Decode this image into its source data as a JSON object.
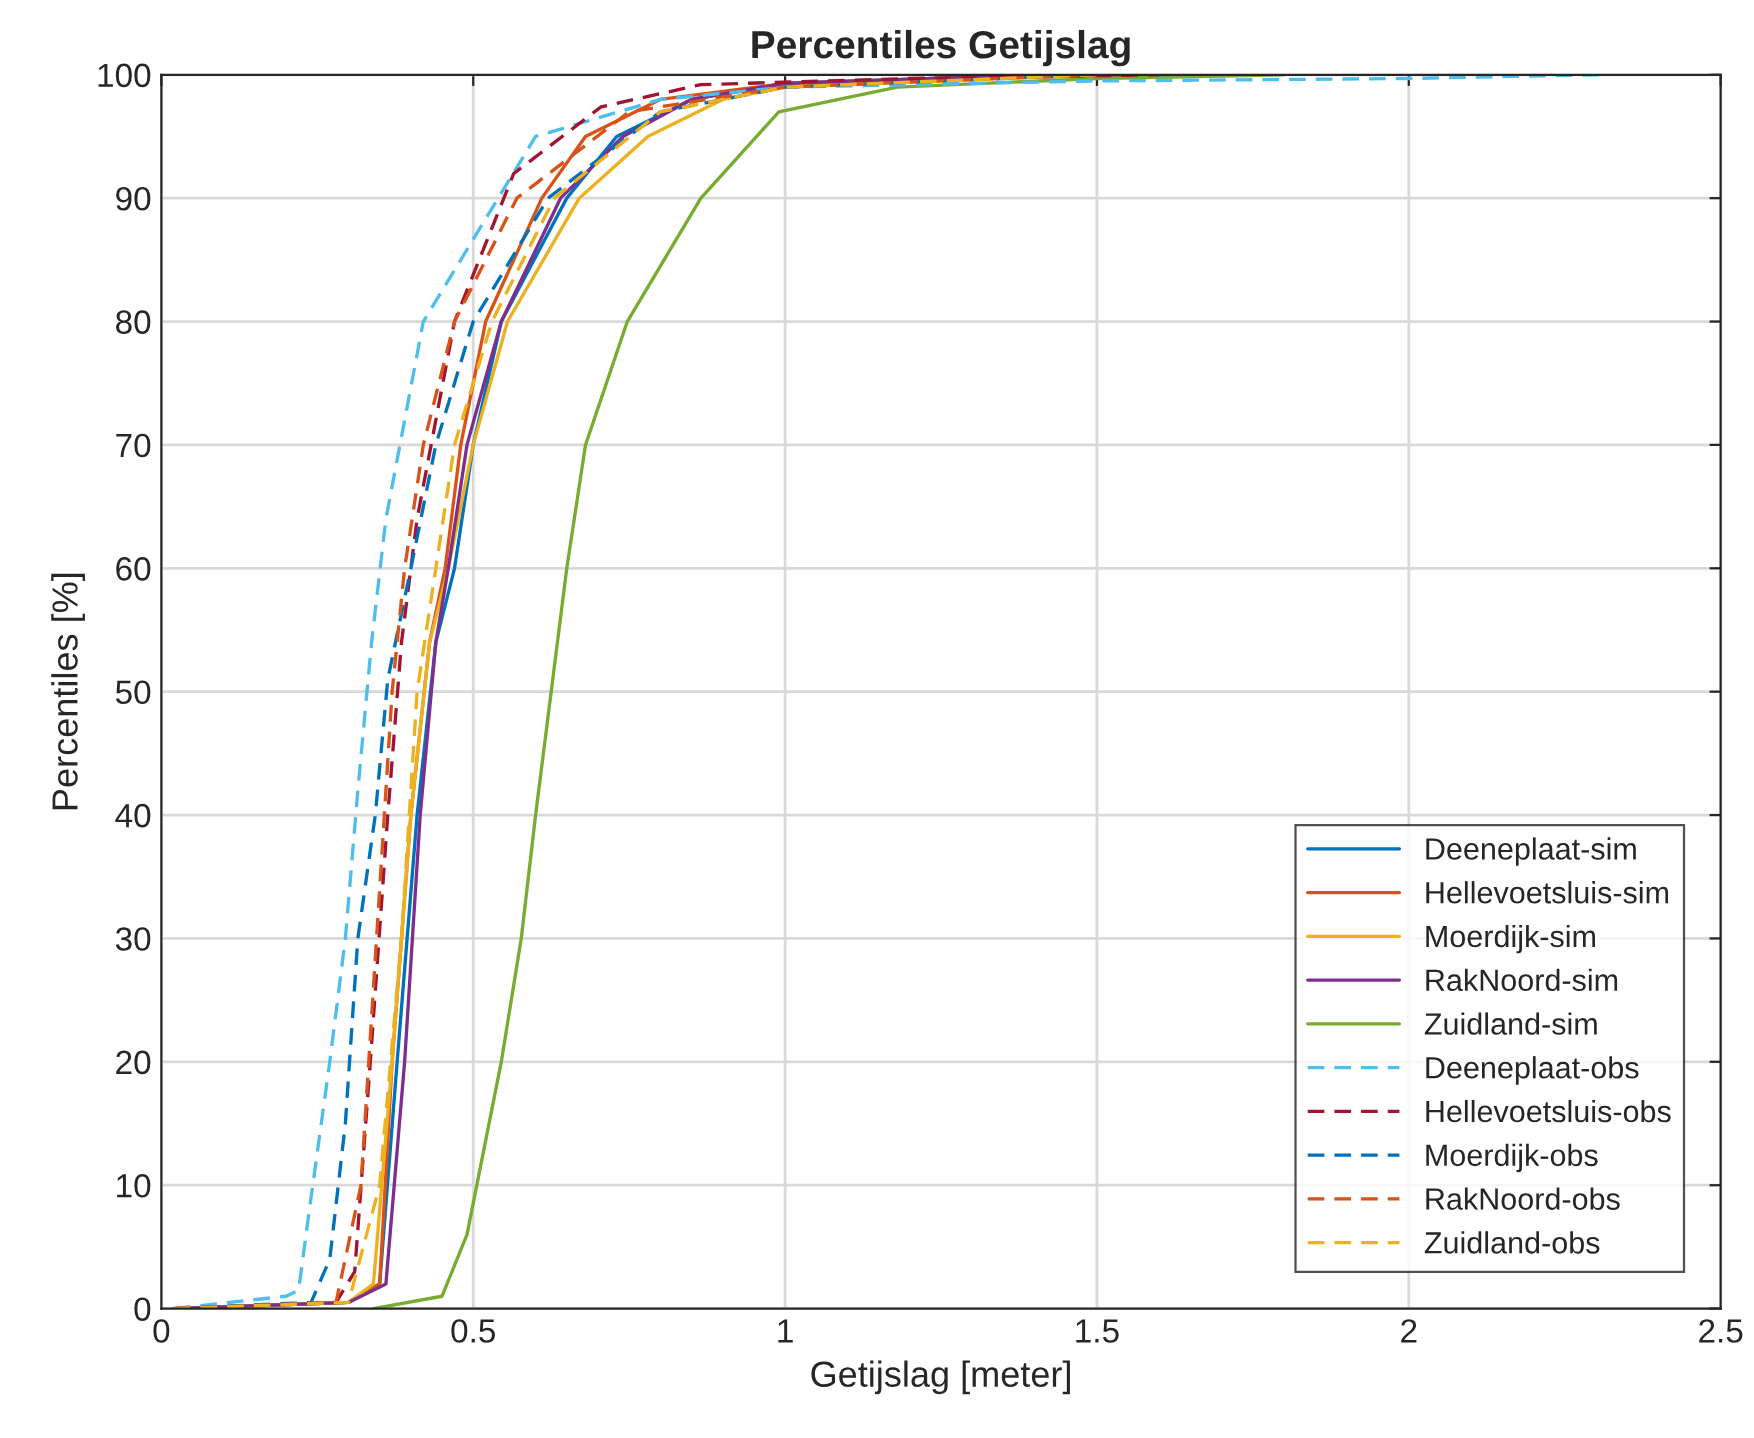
{
  "chart_data": {
    "type": "line",
    "title": "Percentiles Getijslag",
    "xlabel": "Getijslag [meter]",
    "ylabel": "Percentiles [%]",
    "xlim": [
      0,
      2.5
    ],
    "xticks": [
      0,
      0.5,
      1,
      1.5,
      2,
      2.5
    ],
    "ylim": [
      0,
      100
    ],
    "yticks": [
      0,
      10,
      20,
      30,
      40,
      50,
      60,
      70,
      80,
      90,
      100
    ],
    "grid": true,
    "legend": "bottom right",
    "series": [
      {
        "name": "Deeneplaat-sim",
        "color": "#0072bd",
        "line_style": "solid",
        "x": [
          0.02,
          0.3,
          0.35,
          0.378,
          0.41,
          0.44,
          0.47,
          0.5,
          0.545,
          0.65,
          0.73,
          0.85,
          1.0,
          1.3,
          1.7
        ],
        "values": [
          0,
          0.5,
          2,
          20,
          40,
          54,
          60,
          70,
          80,
          90,
          95,
          98,
          99.3,
          99.8,
          100
        ]
      },
      {
        "name": "Hellevoetsluis-sim",
        "color": "#d95319",
        "line_style": "solid",
        "x": [
          0.02,
          0.3,
          0.35,
          0.37,
          0.4,
          0.43,
          0.455,
          0.48,
          0.52,
          0.61,
          0.68,
          0.8,
          1.0,
          1.3,
          1.7
        ],
        "values": [
          0,
          0.5,
          2,
          20,
          40,
          54,
          60,
          70,
          80,
          90,
          95,
          98,
          99.3,
          99.8,
          100
        ]
      },
      {
        "name": "Moerdijk-sim",
        "color": "#edb120",
        "line_style": "solid",
        "x": [
          0.02,
          0.3,
          0.34,
          0.37,
          0.4,
          0.43,
          0.46,
          0.5,
          0.555,
          0.67,
          0.78,
          0.9,
          1.0,
          1.3,
          1.7
        ],
        "values": [
          0,
          0.5,
          2,
          20,
          40,
          54,
          60,
          70,
          80,
          90,
          95,
          98,
          99,
          99.8,
          100
        ]
      },
      {
        "name": "RakNoord-sim",
        "color": "#7e2f8e",
        "line_style": "solid",
        "x": [
          0.02,
          0.3,
          0.36,
          0.39,
          0.415,
          0.44,
          0.46,
          0.49,
          0.545,
          0.64,
          0.74,
          0.85,
          1.0,
          1.3,
          1.6
        ],
        "values": [
          0,
          0.5,
          2,
          20,
          40,
          54,
          60,
          70,
          80,
          90,
          95,
          98,
          99.3,
          99.8,
          100
        ]
      },
      {
        "name": "Zuidland-sim",
        "color": "#77ac30",
        "line_style": "solid",
        "x": [
          0.34,
          0.45,
          0.49,
          0.545,
          0.577,
          0.6,
          0.635,
          0.65,
          0.68,
          0.747,
          0.865,
          0.99,
          1.18,
          1.5,
          1.8
        ],
        "values": [
          0,
          1,
          6,
          20,
          30,
          40,
          54,
          60,
          70,
          80,
          90,
          97,
          99,
          99.7,
          100
        ]
      },
      {
        "name": "Deeneplaat-obs",
        "color": "#4dbeee",
        "line_style": "dashed",
        "x": [
          0.02,
          0.2,
          0.22,
          0.24,
          0.27,
          0.295,
          0.315,
          0.337,
          0.36,
          0.42,
          0.48,
          0.6,
          0.8,
          1.0,
          1.5,
          2.0,
          2.31
        ],
        "values": [
          0,
          1,
          1.5,
          9,
          20,
          30,
          42,
          54,
          64,
          80,
          85,
          95,
          98,
          99,
          99.5,
          99.7,
          100
        ]
      },
      {
        "name": "Hellevoetsluis-obs",
        "color": "#a2142f",
        "line_style": "dashed",
        "x": [
          0.02,
          0.28,
          0.31,
          0.335,
          0.363,
          0.385,
          0.41,
          0.47,
          0.565,
          0.705,
          0.865,
          1.2,
          1.6
        ],
        "values": [
          0,
          0.5,
          3,
          20,
          40,
          54,
          64,
          80,
          92,
          97.4,
          99.2,
          99.7,
          100
        ]
      },
      {
        "name": "Moerdijk-obs",
        "color": "#0072bd",
        "line_style": "dashed",
        "x": [
          0.02,
          0.24,
          0.27,
          0.295,
          0.315,
          0.343,
          0.363,
          0.4,
          0.44,
          0.5,
          0.62,
          0.8,
          1.0,
          1.5
        ],
        "values": [
          0,
          0.5,
          4,
          15,
          30,
          40,
          51,
          60,
          70,
          80,
          90,
          97,
          99,
          100
        ]
      },
      {
        "name": "RakNoord-obs",
        "color": "#d95319",
        "line_style": "dashed",
        "x": [
          0.02,
          0.28,
          0.32,
          0.345,
          0.37,
          0.39,
          0.42,
          0.47,
          0.57,
          0.75,
          1.0,
          1.5
        ],
        "values": [
          0,
          0.5,
          10,
          30,
          50,
          60,
          70,
          80,
          90,
          97,
          99,
          100
        ]
      },
      {
        "name": "Zuidland-obs",
        "color": "#edb120",
        "line_style": "dashed",
        "x": [
          0.02,
          0.3,
          0.35,
          0.385,
          0.41,
          0.44,
          0.47,
          0.53,
          0.63,
          0.8,
          1.0,
          1.5
        ],
        "values": [
          0,
          0.5,
          10,
          30,
          50,
          60,
          70,
          80,
          90,
          97,
          99,
          100
        ]
      }
    ]
  }
}
